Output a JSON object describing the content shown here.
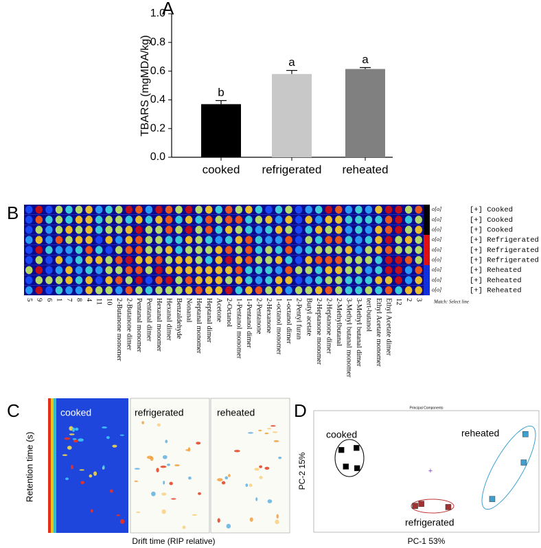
{
  "chart_data": [
    {
      "type": "bar",
      "panel": "A",
      "categories": [
        "cooked",
        "refrigerated",
        "reheated"
      ],
      "values": [
        0.37,
        0.58,
        0.615
      ],
      "errors": [
        0.025,
        0.025,
        0.01
      ],
      "value_letters": [
        "b",
        "a",
        "a"
      ],
      "colors": [
        "#000000",
        "#c8c8c8",
        "#808080"
      ],
      "ylabel": "TBARS (mgMDA/kg)",
      "ylim": [
        0,
        1
      ],
      "yticks": [
        {
          "value": 0,
          "label": "0.0"
        },
        0.2,
        0.4,
        0.6,
        0.8,
        {
          "value": 1,
          "label": "1.0"
        }
      ]
    },
    {
      "type": "scatter",
      "panel": "D",
      "title": "Principal Components",
      "xlabel": "PC-1 53%",
      "ylabel": "PC-2 15%",
      "xlim": [
        -2,
        2
      ],
      "ylim": [
        -1.5,
        1.5
      ],
      "series": [
        {
          "name": "cooked",
          "color": "#000000",
          "x": [
            -1.51,
            -1.24,
            -1.43,
            -1.23
          ],
          "values": [
            0.53,
            0.58,
            0.12,
            0.08
          ]
        },
        {
          "name": "refrigerated",
          "color": "#a23232",
          "x": [
            -0.2,
            -0.09,
            0.39
          ],
          "values": [
            -0.85,
            -0.8,
            -0.88
          ]
        },
        {
          "name": "reheated",
          "color": "#3fa0d0",
          "x": [
            1.76,
            1.73,
            1.17
          ],
          "values": [
            0.92,
            0.22,
            -0.68
          ]
        }
      ]
    }
  ],
  "heatmap_gallery": {
    "panel": "B",
    "columns": [
      "5",
      "9",
      "6",
      "1",
      "7",
      "8",
      "4",
      "11",
      "10",
      "2-Butanone monomer",
      "2-Butanone dimer",
      "Pentanal monomer",
      "Pentanal dimer",
      "Hexanal monomer",
      "Hexanal dimer",
      "Benzaldehyde",
      "Nonanal",
      "Heptanal monomer",
      "Heptanal dimer",
      "Acetone",
      "2-Octanol",
      "1-Pentanol monomer",
      "1-Pentanol dimer",
      "2-Pentanone",
      "2-Hexanone",
      "1-octanol monomer",
      "1-octanol dimer",
      "2-Pentyl furan",
      "Butyl acetate",
      "2-Heptanone monomer",
      "2-Heptanone dimer",
      "2-Methylbutanal",
      "3-Methyl butanal monomer",
      "3-Methyl butanal dimer",
      "tert-butanol",
      "Ethyl Acetate monomer",
      "Ethyl Acetate dimer",
      "12",
      "2",
      "3"
    ],
    "rows": [
      {
        "marker": "o[o]",
        "label": "[+] Cooked"
      },
      {
        "marker": "o[o]",
        "label": "[+] Cooked"
      },
      {
        "marker": "o[o]",
        "label": "[+] Cooked"
      },
      {
        "marker": "o[o]",
        "label": "[+] Refrigerated"
      },
      {
        "marker": "o[o]",
        "label": "[+] Refrigerated"
      },
      {
        "marker": "o[o]",
        "label": "[+] Refrigerated"
      },
      {
        "marker": "o[o]",
        "label": "[+] Reheated"
      },
      {
        "marker": "o[o]",
        "label": "[+] Reheated"
      },
      {
        "marker": "o[o]",
        "label": "[+] Reheated"
      }
    ],
    "note": "Match: Select line"
  },
  "spectra": {
    "panel": "C",
    "ylabel": "Retention time (s)",
    "xlabel": "Drift time (RIP relative)",
    "samples": [
      "cooked",
      "refrigerated",
      "reheated"
    ]
  }
}
